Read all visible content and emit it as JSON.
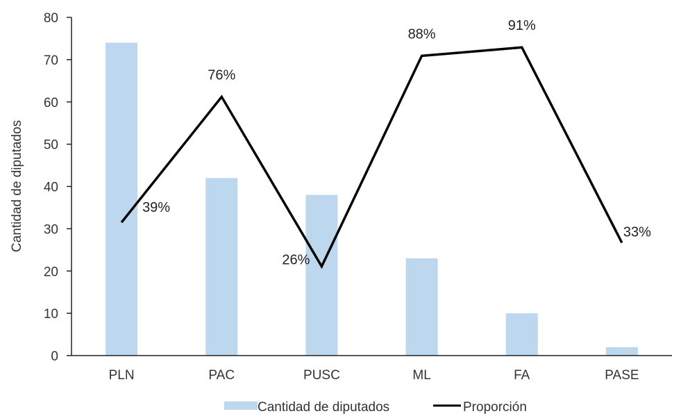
{
  "chart_data": {
    "type": "bar",
    "categories": [
      "PLN",
      "PAC",
      "PUSC",
      "ML",
      "FA",
      "PASE"
    ],
    "series": [
      {
        "name": "Cantidad de diputados",
        "type": "bar",
        "axis": "left",
        "values": [
          74,
          42,
          38,
          23,
          10,
          2
        ]
      },
      {
        "name": "Proporción",
        "type": "line",
        "values": [
          31.5,
          61.2,
          21.1,
          70.9,
          72.9,
          26.7
        ],
        "labels": [
          "39%",
          "76%",
          "26%",
          "88%",
          "91%",
          "33%"
        ]
      }
    ],
    "ylabel": "Cantidad de diputados",
    "xlabel": "",
    "ylim": [
      0,
      80
    ],
    "yticks": [
      "0",
      "10",
      "20",
      "30",
      "40",
      "50",
      "60",
      "70",
      "80"
    ],
    "grid": false,
    "legend": "bottom",
    "colors": {
      "bar": "#bdd7ee",
      "line": "#000000",
      "axis": "#222222",
      "text": "#333333"
    }
  }
}
